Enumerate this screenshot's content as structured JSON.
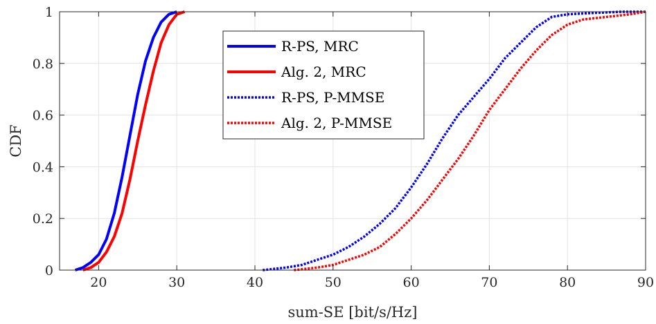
{
  "chart_data": {
    "type": "line",
    "title": "",
    "xlabel": "sum-SE [bit/s/Hz]",
    "ylabel": "CDF",
    "xlim": [
      15,
      90
    ],
    "ylim": [
      0,
      1
    ],
    "xticks": [
      20,
      30,
      40,
      50,
      60,
      70,
      80,
      90
    ],
    "yticks": [
      0,
      0.2,
      0.4,
      0.6,
      0.8,
      1
    ],
    "xtick_labels": [
      "20",
      "30",
      "40",
      "50",
      "60",
      "70",
      "80",
      "90"
    ],
    "ytick_labels": [
      "0",
      "0.2",
      "0.4",
      "0.6",
      "0.8",
      "1"
    ],
    "grid": true,
    "legend_position": "top-center",
    "series": [
      {
        "name": "R-PS, MRC",
        "color": "#0000ff",
        "style": "solid",
        "points": [
          [
            17.0,
            0.0
          ],
          [
            18.0,
            0.01
          ],
          [
            19.0,
            0.03
          ],
          [
            20.0,
            0.06
          ],
          [
            21.0,
            0.12
          ],
          [
            22.0,
            0.22
          ],
          [
            23.0,
            0.36
          ],
          [
            24.0,
            0.52
          ],
          [
            25.0,
            0.68
          ],
          [
            26.0,
            0.81
          ],
          [
            27.0,
            0.9
          ],
          [
            28.0,
            0.96
          ],
          [
            29.0,
            0.99
          ],
          [
            30.0,
            1.0
          ]
        ]
      },
      {
        "name": "Alg. 2, MRC",
        "color": "#ff0000",
        "style": "solid",
        "points": [
          [
            18.0,
            0.0
          ],
          [
            19.0,
            0.01
          ],
          [
            20.0,
            0.03
          ],
          [
            21.0,
            0.07
          ],
          [
            22.0,
            0.13
          ],
          [
            23.0,
            0.22
          ],
          [
            24.0,
            0.35
          ],
          [
            25.0,
            0.5
          ],
          [
            26.0,
            0.64
          ],
          [
            27.0,
            0.77
          ],
          [
            28.0,
            0.88
          ],
          [
            29.0,
            0.95
          ],
          [
            30.0,
            0.99
          ],
          [
            31.0,
            1.0
          ]
        ]
      },
      {
        "name": "R-PS, P-MMSE",
        "color": "#0000ff",
        "style": "dotted",
        "points": [
          [
            41.0,
            0.0
          ],
          [
            44.0,
            0.01
          ],
          [
            46.0,
            0.02
          ],
          [
            48.0,
            0.04
          ],
          [
            50.0,
            0.06
          ],
          [
            52.0,
            0.09
          ],
          [
            54.0,
            0.13
          ],
          [
            56.0,
            0.18
          ],
          [
            58.0,
            0.24
          ],
          [
            60.0,
            0.32
          ],
          [
            62.0,
            0.41
          ],
          [
            64.0,
            0.51
          ],
          [
            66.0,
            0.6
          ],
          [
            68.0,
            0.67
          ],
          [
            70.0,
            0.74
          ],
          [
            72.0,
            0.82
          ],
          [
            74.0,
            0.88
          ],
          [
            76.0,
            0.94
          ],
          [
            78.0,
            0.98
          ],
          [
            80.0,
            0.99
          ],
          [
            83.0,
            0.995
          ],
          [
            87.0,
            1.0
          ],
          [
            90.0,
            1.0
          ]
        ]
      },
      {
        "name": "Alg. 2, P-MMSE",
        "color": "#ff0000",
        "style": "dotted",
        "points": [
          [
            45.0,
            0.0
          ],
          [
            48.0,
            0.01
          ],
          [
            50.0,
            0.02
          ],
          [
            52.0,
            0.04
          ],
          [
            54.0,
            0.06
          ],
          [
            56.0,
            0.09
          ],
          [
            58.0,
            0.14
          ],
          [
            60.0,
            0.2
          ],
          [
            62.0,
            0.27
          ],
          [
            64.0,
            0.35
          ],
          [
            66.0,
            0.43
          ],
          [
            68.0,
            0.52
          ],
          [
            70.0,
            0.62
          ],
          [
            72.0,
            0.7
          ],
          [
            74.0,
            0.78
          ],
          [
            76.0,
            0.85
          ],
          [
            78.0,
            0.91
          ],
          [
            80.0,
            0.95
          ],
          [
            82.0,
            0.97
          ],
          [
            85.0,
            0.98
          ],
          [
            88.0,
            0.99
          ],
          [
            90.0,
            1.0
          ]
        ]
      }
    ]
  }
}
